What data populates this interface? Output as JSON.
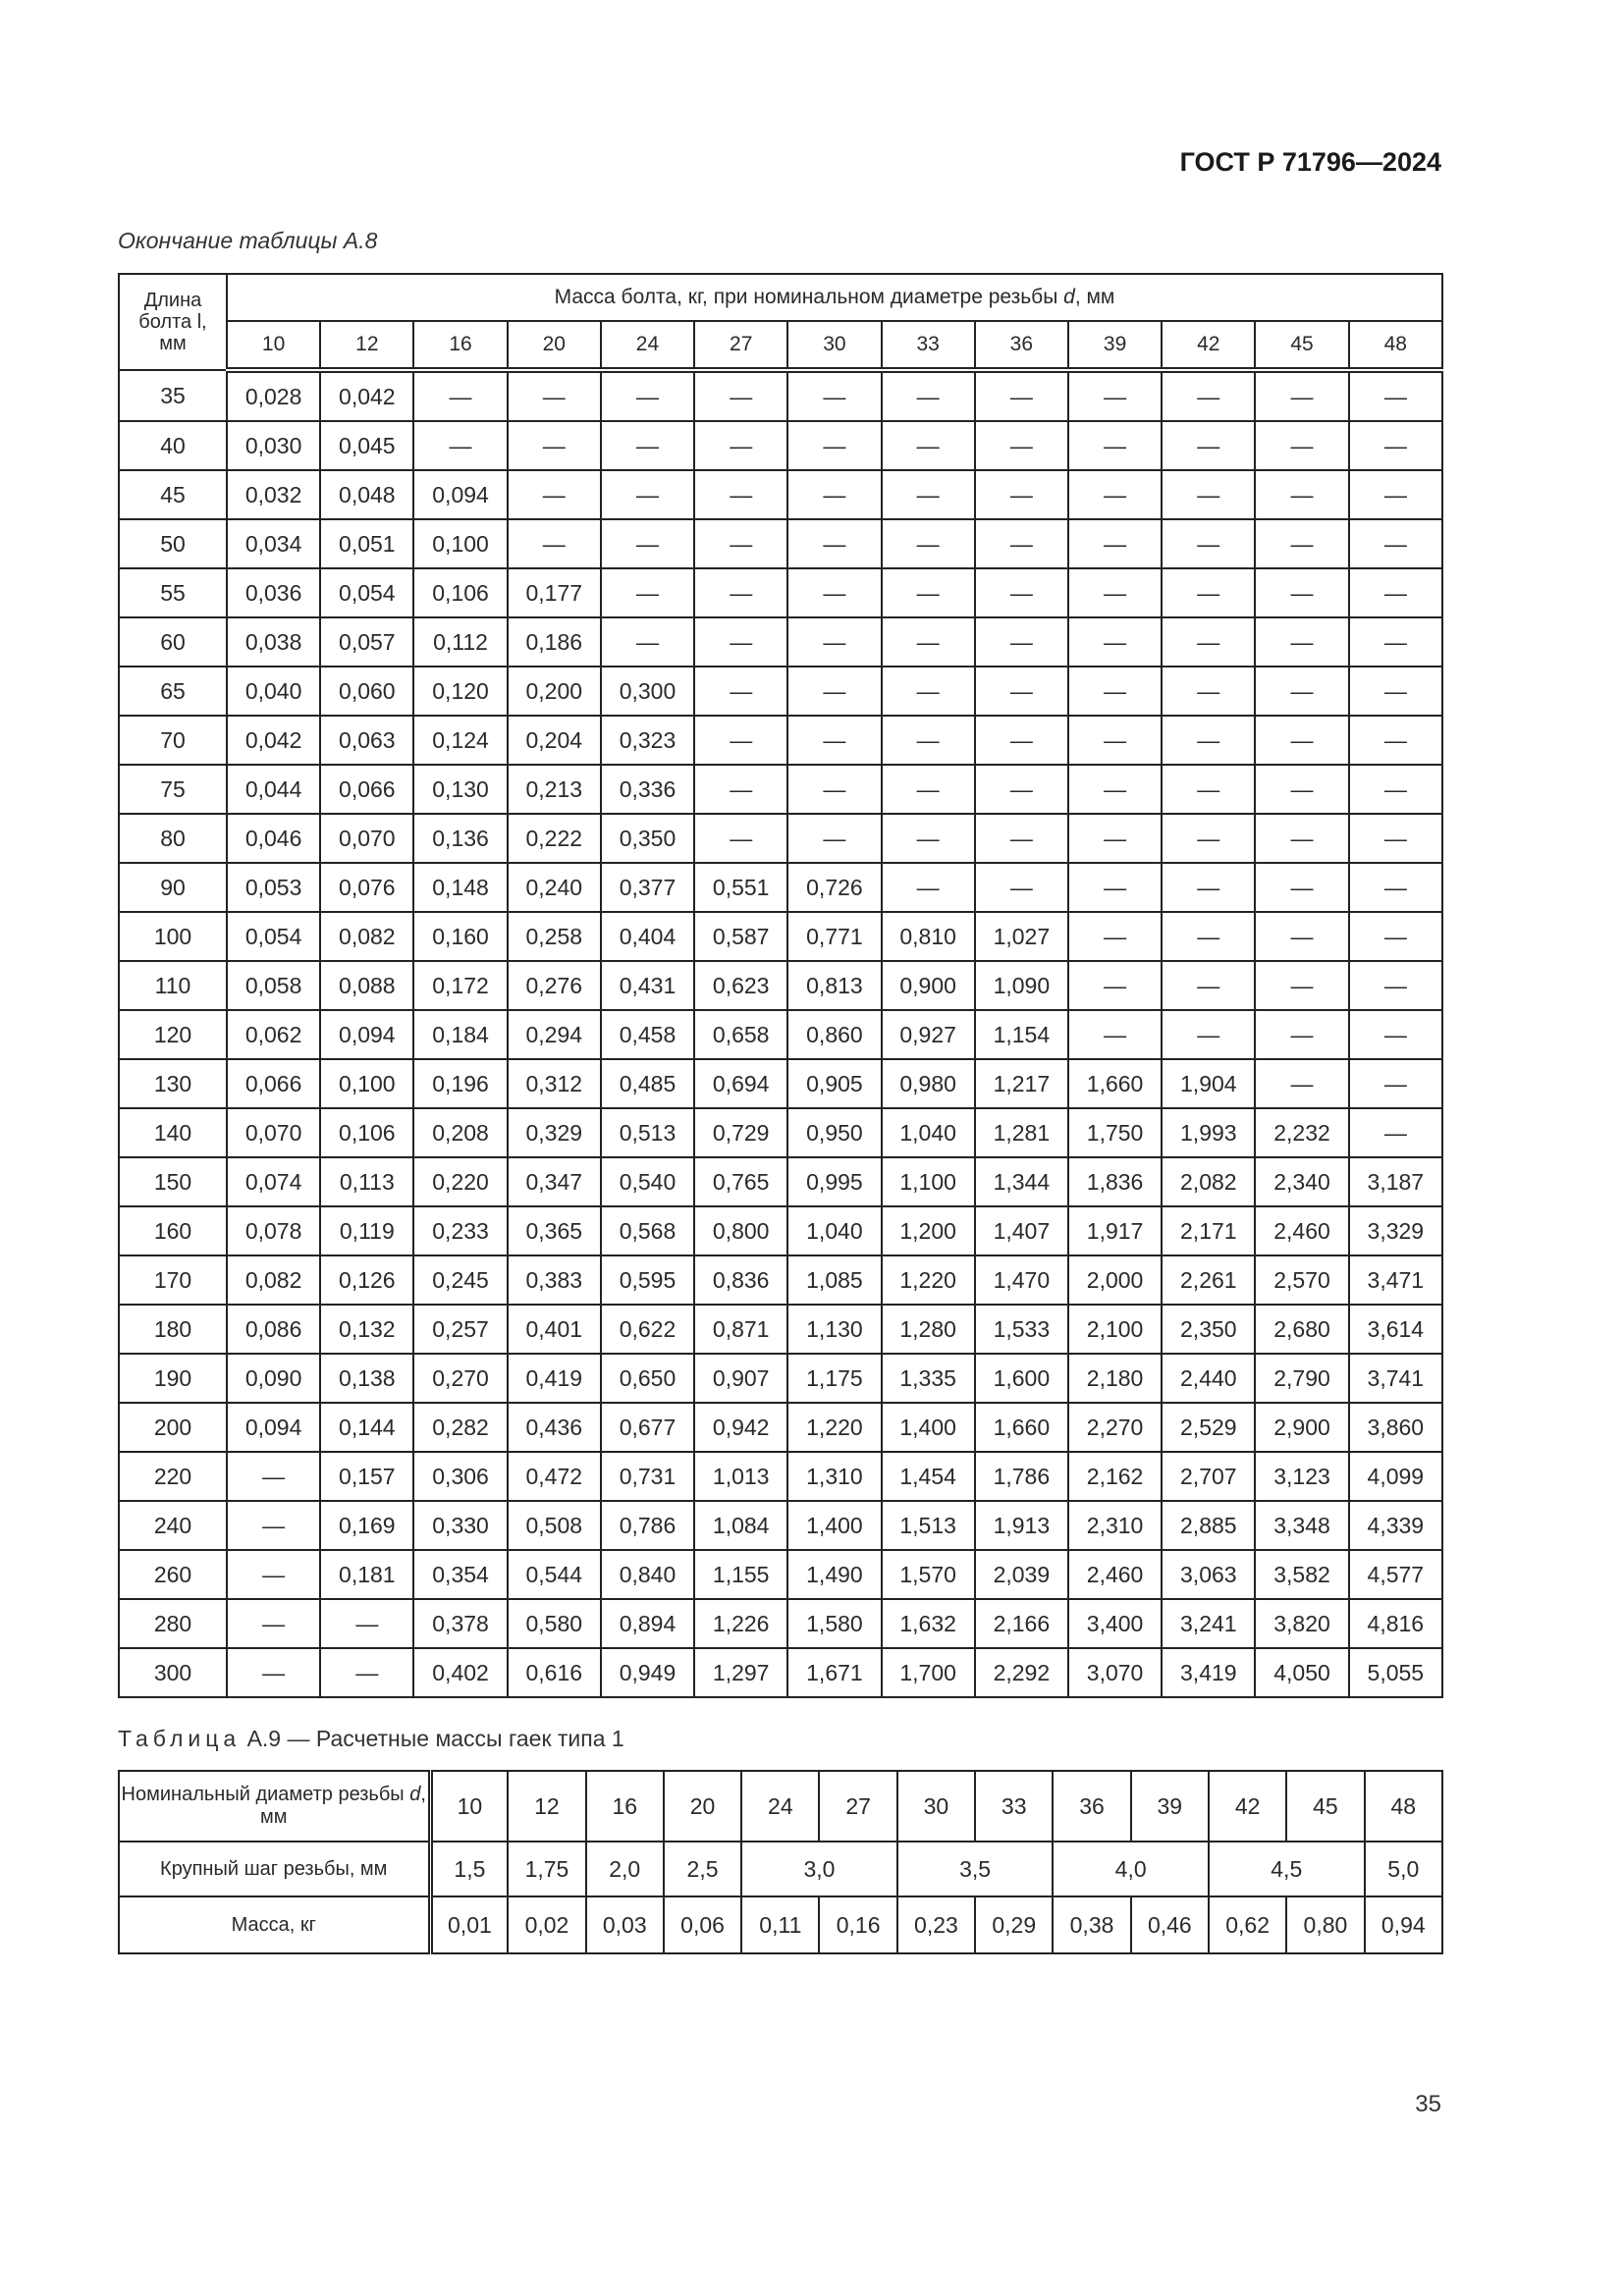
{
  "header": {
    "doc_id": "ГОСТ Р 71796—2024"
  },
  "table_a8": {
    "caption": "Окончание таблицы А.8",
    "length_header": [
      "Длина",
      "болта l,",
      "мм"
    ],
    "mass_header_pre": "Масса болта, кг, при номинальном диаметре резьбы ",
    "mass_header_var": "d",
    "mass_header_post": ", мм",
    "diameters": [
      "10",
      "12",
      "16",
      "20",
      "24",
      "27",
      "30",
      "33",
      "36",
      "39",
      "42",
      "45",
      "48"
    ],
    "rows": [
      [
        "35",
        "0,028",
        "0,042",
        "—",
        "—",
        "—",
        "—",
        "—",
        "—",
        "—",
        "—",
        "—",
        "—",
        "—"
      ],
      [
        "40",
        "0,030",
        "0,045",
        "—",
        "—",
        "—",
        "—",
        "—",
        "—",
        "—",
        "—",
        "—",
        "—",
        "—"
      ],
      [
        "45",
        "0,032",
        "0,048",
        "0,094",
        "—",
        "—",
        "—",
        "—",
        "—",
        "—",
        "—",
        "—",
        "—",
        "—"
      ],
      [
        "50",
        "0,034",
        "0,051",
        "0,100",
        "—",
        "—",
        "—",
        "—",
        "—",
        "—",
        "—",
        "—",
        "—",
        "—"
      ],
      [
        "55",
        "0,036",
        "0,054",
        "0,106",
        "0,177",
        "—",
        "—",
        "—",
        "—",
        "—",
        "—",
        "—",
        "—",
        "—"
      ],
      [
        "60",
        "0,038",
        "0,057",
        "0,112",
        "0,186",
        "—",
        "—",
        "—",
        "—",
        "—",
        "—",
        "—",
        "—",
        "—"
      ],
      [
        "65",
        "0,040",
        "0,060",
        "0,120",
        "0,200",
        "0,300",
        "—",
        "—",
        "—",
        "—",
        "—",
        "—",
        "—",
        "—"
      ],
      [
        "70",
        "0,042",
        "0,063",
        "0,124",
        "0,204",
        "0,323",
        "—",
        "—",
        "—",
        "—",
        "—",
        "—",
        "—",
        "—"
      ],
      [
        "75",
        "0,044",
        "0,066",
        "0,130",
        "0,213",
        "0,336",
        "—",
        "—",
        "—",
        "—",
        "—",
        "—",
        "—",
        "—"
      ],
      [
        "80",
        "0,046",
        "0,070",
        "0,136",
        "0,222",
        "0,350",
        "—",
        "—",
        "—",
        "—",
        "—",
        "—",
        "—",
        "—"
      ],
      [
        "90",
        "0,053",
        "0,076",
        "0,148",
        "0,240",
        "0,377",
        "0,551",
        "0,726",
        "—",
        "—",
        "—",
        "—",
        "—",
        "—"
      ],
      [
        "100",
        "0,054",
        "0,082",
        "0,160",
        "0,258",
        "0,404",
        "0,587",
        "0,771",
        "0,810",
        "1,027",
        "—",
        "—",
        "—",
        "—"
      ],
      [
        "110",
        "0,058",
        "0,088",
        "0,172",
        "0,276",
        "0,431",
        "0,623",
        "0,813",
        "0,900",
        "1,090",
        "—",
        "—",
        "—",
        "—"
      ],
      [
        "120",
        "0,062",
        "0,094",
        "0,184",
        "0,294",
        "0,458",
        "0,658",
        "0,860",
        "0,927",
        "1,154",
        "—",
        "—",
        "—",
        "—"
      ],
      [
        "130",
        "0,066",
        "0,100",
        "0,196",
        "0,312",
        "0,485",
        "0,694",
        "0,905",
        "0,980",
        "1,217",
        "1,660",
        "1,904",
        "—",
        "—"
      ],
      [
        "140",
        "0,070",
        "0,106",
        "0,208",
        "0,329",
        "0,513",
        "0,729",
        "0,950",
        "1,040",
        "1,281",
        "1,750",
        "1,993",
        "2,232",
        "—"
      ],
      [
        "150",
        "0,074",
        "0,113",
        "0,220",
        "0,347",
        "0,540",
        "0,765",
        "0,995",
        "1,100",
        "1,344",
        "1,836",
        "2,082",
        "2,340",
        "3,187"
      ],
      [
        "160",
        "0,078",
        "0,119",
        "0,233",
        "0,365",
        "0,568",
        "0,800",
        "1,040",
        "1,200",
        "1,407",
        "1,917",
        "2,171",
        "2,460",
        "3,329"
      ],
      [
        "170",
        "0,082",
        "0,126",
        "0,245",
        "0,383",
        "0,595",
        "0,836",
        "1,085",
        "1,220",
        "1,470",
        "2,000",
        "2,261",
        "2,570",
        "3,471"
      ],
      [
        "180",
        "0,086",
        "0,132",
        "0,257",
        "0,401",
        "0,622",
        "0,871",
        "1,130",
        "1,280",
        "1,533",
        "2,100",
        "2,350",
        "2,680",
        "3,614"
      ],
      [
        "190",
        "0,090",
        "0,138",
        "0,270",
        "0,419",
        "0,650",
        "0,907",
        "1,175",
        "1,335",
        "1,600",
        "2,180",
        "2,440",
        "2,790",
        "3,741"
      ],
      [
        "200",
        "0,094",
        "0,144",
        "0,282",
        "0,436",
        "0,677",
        "0,942",
        "1,220",
        "1,400",
        "1,660",
        "2,270",
        "2,529",
        "2,900",
        "3,860"
      ],
      [
        "220",
        "—",
        "0,157",
        "0,306",
        "0,472",
        "0,731",
        "1,013",
        "1,310",
        "1,454",
        "1,786",
        "2,162",
        "2,707",
        "3,123",
        "4,099"
      ],
      [
        "240",
        "—",
        "0,169",
        "0,330",
        "0,508",
        "0,786",
        "1,084",
        "1,400",
        "1,513",
        "1,913",
        "2,310",
        "2,885",
        "3,348",
        "4,339"
      ],
      [
        "260",
        "—",
        "0,181",
        "0,354",
        "0,544",
        "0,840",
        "1,155",
        "1,490",
        "1,570",
        "2,039",
        "2,460",
        "3,063",
        "3,582",
        "4,577"
      ],
      [
        "280",
        "—",
        "—",
        "0,378",
        "0,580",
        "0,894",
        "1,226",
        "1,580",
        "1,632",
        "2,166",
        "3,400",
        "3,241",
        "3,820",
        "4,816"
      ],
      [
        "300",
        "—",
        "—",
        "0,402",
        "0,616",
        "0,949",
        "1,297",
        "1,671",
        "1,700",
        "2,292",
        "3,070",
        "3,419",
        "4,050",
        "5,055"
      ]
    ]
  },
  "table_a9": {
    "caption_word": "Таблица",
    "caption_rest": " А.9 — Расчетные массы гаек типа 1",
    "diameter_label_pre": "Номинальный диаметр резьбы ",
    "diameter_label_var": "d",
    "diameter_label_post": ", мм",
    "diameters": [
      "10",
      "12",
      "16",
      "20",
      "24",
      "27",
      "30",
      "33",
      "36",
      "39",
      "42",
      "45",
      "48"
    ],
    "pitch_label": "Крупный шаг резьбы, мм",
    "pitches": [
      {
        "value": "1,5",
        "span": 1
      },
      {
        "value": "1,75",
        "span": 1
      },
      {
        "value": "2,0",
        "span": 1
      },
      {
        "value": "2,5",
        "span": 1
      },
      {
        "value": "3,0",
        "span": 2
      },
      {
        "value": "3,5",
        "span": 2
      },
      {
        "value": "4,0",
        "span": 2
      },
      {
        "value": "4,5",
        "span": 2
      },
      {
        "value": "5,0",
        "span": 1
      }
    ],
    "mass_label": "Масса, кг",
    "masses": [
      "0,01",
      "0,02",
      "0,03",
      "0,06",
      "0,11",
      "0,16",
      "0,23",
      "0,29",
      "0,38",
      "0,46",
      "0,62",
      "0,80",
      "0,94"
    ]
  },
  "footer": {
    "page_number": "35"
  }
}
